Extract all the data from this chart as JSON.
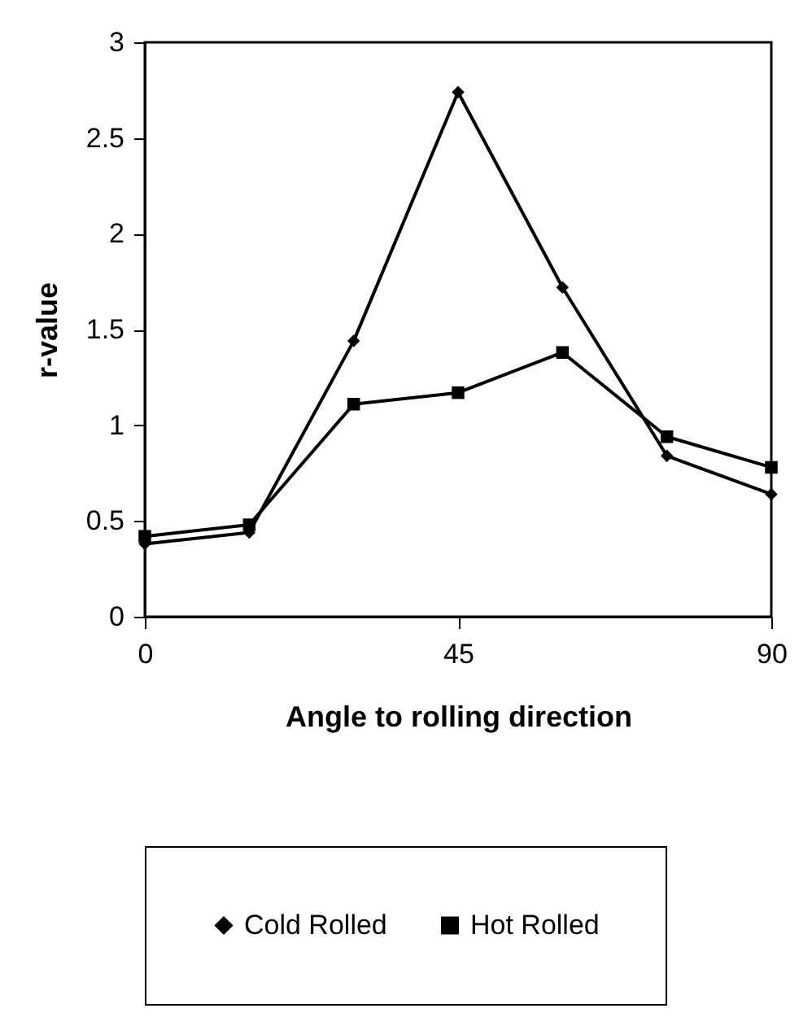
{
  "chart_data": {
    "type": "line",
    "xlabel": "Angle to rolling direction",
    "ylabel": "r-value",
    "x": [
      0,
      15,
      30,
      45,
      60,
      75,
      90
    ],
    "series": [
      {
        "name": "Cold Rolled",
        "color": "#000000",
        "marker": "diamond",
        "values": [
          0.38,
          0.44,
          1.44,
          2.74,
          1.72,
          0.84,
          0.64
        ]
      },
      {
        "name": "Hot Rolled",
        "color": "#000000",
        "marker": "square",
        "values": [
          0.42,
          0.48,
          1.11,
          1.17,
          1.38,
          0.94,
          0.78
        ]
      }
    ],
    "xlim": [
      0,
      90
    ],
    "xticks": [
      0,
      45,
      90
    ],
    "ylim": [
      0,
      3
    ],
    "yticks": [
      0,
      0.5,
      1,
      1.5,
      2,
      2.5,
      3
    ],
    "grid": false,
    "legend": "bottom"
  }
}
